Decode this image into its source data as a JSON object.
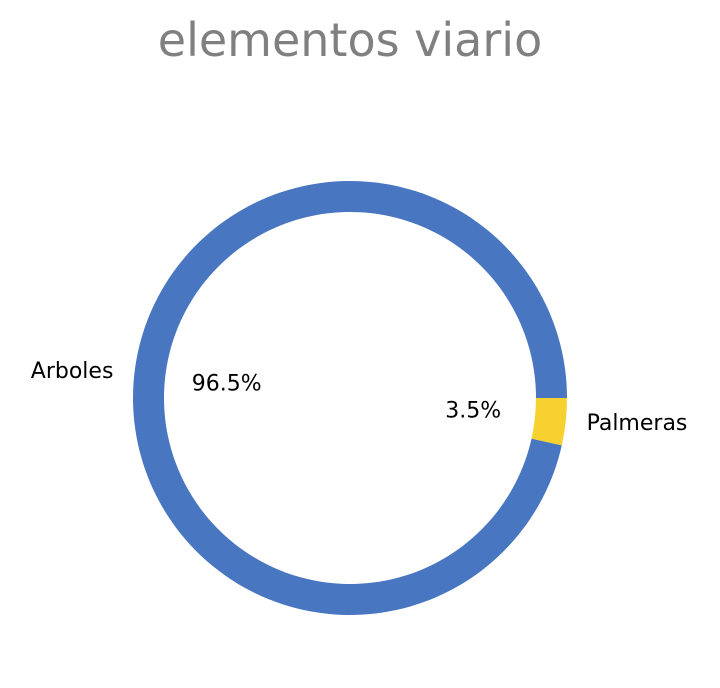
{
  "chart_data": {
    "type": "pie",
    "title": "elementos viario",
    "categories": [
      "Arboles",
      "Palmeras"
    ],
    "values": [
      96.5,
      3.5
    ],
    "value_labels": [
      "96.5%",
      "3.5%"
    ],
    "colors": [
      "#4876c1",
      "#f6d12f"
    ],
    "style": "donut"
  }
}
